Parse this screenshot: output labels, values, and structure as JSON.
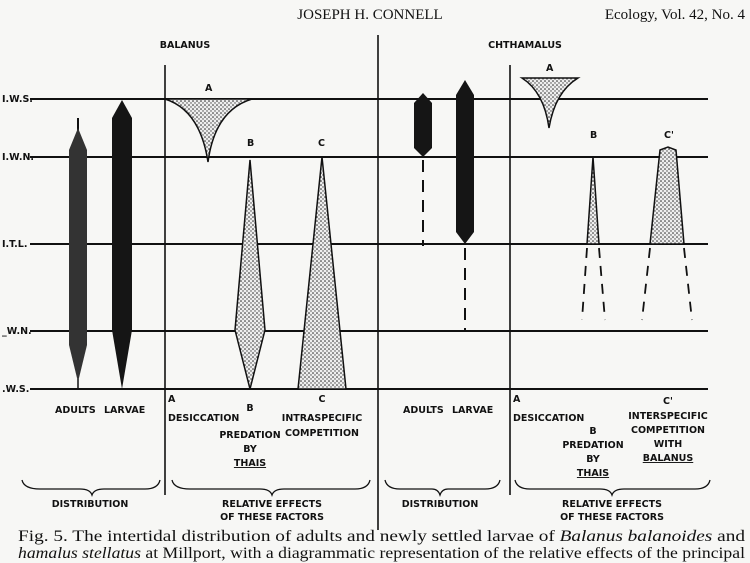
{
  "header": {
    "author": "JOSEPH H. CONNELL",
    "journal": "Ecology, Vol. 42, No. 4"
  },
  "species": {
    "left": "BALANUS",
    "right": "CHTHAMALUS"
  },
  "levels": [
    "I.W.S.",
    "I.W.N.",
    "I.T.L.",
    "_W.N.",
    ".W.S."
  ],
  "left": {
    "adults": "ADULTS",
    "larvae": "LARVAE",
    "a": "A",
    "b": "B",
    "c": "C",
    "a_label": "DESICCATION",
    "b_label": [
      "PREDATION",
      "BY",
      "THAIS"
    ],
    "c_label": [
      "INTRASPECIFIC",
      "COMPETITION"
    ],
    "group1": "DISTRIBUTION",
    "group2": [
      "RELATIVE EFFECTS",
      "OF THESE FACTORS"
    ]
  },
  "right": {
    "adults": "ADULTS",
    "larvae": "LARVAE",
    "a": "A",
    "b": "B",
    "c": "C'",
    "a_label": "DESICCATION",
    "b_label": [
      "PREDATION",
      "BY",
      "THAIS"
    ],
    "c_label": [
      "INTERSPECIFIC",
      "COMPETITION",
      "WITH",
      "BALANUS"
    ],
    "group1": "DISTRIBUTION",
    "group2": [
      "RELATIVE EFFECTS",
      "OF THESE FACTORS"
    ]
  },
  "caption": {
    "line1_prefix": "Fig. 5.",
    "line1": "The intertidal distribution of adults and newly settled larvae of",
    "line1_italic": "Balanus balanoides",
    "line1_end": "and",
    "line2_italic": "hamalus stellatus",
    "line2": "at Millport, with a diagrammatic representation of the relative effects of the principal"
  }
}
